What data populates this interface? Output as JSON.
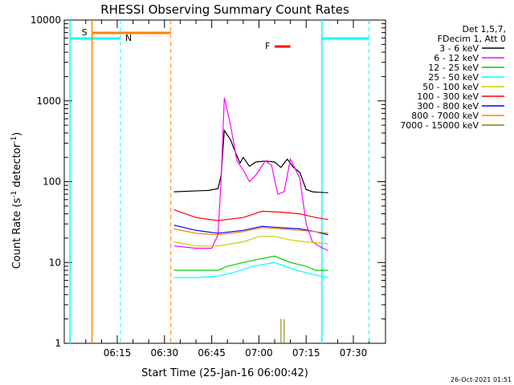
{
  "chart_data": {
    "type": "line",
    "title": "RHESSI Observing Summary Count Rates",
    "xlabel": "Start Time (25-Jan-16 06:00:42)",
    "ylabel": "Count Rate (s",
    "ylabel_sup": "-1",
    "ylabel_mid": " detector",
    "ylabel_sup2": "-1",
    "ylabel_end": ")",
    "yscale": "log",
    "ylim": [
      1,
      10000
    ],
    "y_ticks": [
      "1",
      "10",
      "100",
      "1000",
      "10000"
    ],
    "x_range_minutes": [
      0,
      48
    ],
    "x_ticks": [
      {
        "m": 15,
        "label": "06:15"
      },
      {
        "m": 30,
        "label": "06:30"
      },
      {
        "m": 45,
        "label": "06:45"
      },
      {
        "m": 60,
        "label": "07:00"
      },
      {
        "m": 75,
        "label": "07:15"
      },
      {
        "m": 90,
        "label": "07:30"
      }
    ],
    "legend_header": [
      "Det 1,5,7,",
      "FDecim 1, Att 0"
    ],
    "series": [
      {
        "name": "3 - 6 keV",
        "color": "#000000",
        "x": [
          "06:33",
          "06:44",
          "06:47",
          "06:48",
          "06:49",
          "06:51",
          "06:52",
          "06:54",
          "06:55",
          "06:57",
          "06:59",
          "07:02",
          "07:05",
          "07:07",
          "07:09",
          "07:11",
          "07:13",
          "07:15",
          "07:17",
          "07:19",
          "07:22"
        ],
        "y": [
          75,
          78,
          82,
          120,
          430,
          330,
          260,
          170,
          200,
          155,
          175,
          180,
          175,
          150,
          190,
          150,
          130,
          80,
          75,
          74,
          73
        ]
      },
      {
        "name": "6 - 12 keV",
        "color": "#ff00ff",
        "x": [
          "06:33",
          "06:40",
          "06:45",
          "06:47",
          "06:48",
          "06:49",
          "06:51",
          "06:53",
          "06:55",
          "06:57",
          "06:59",
          "07:02",
          "07:04",
          "07:06",
          "07:08",
          "07:10",
          "07:13",
          "07:15",
          "07:17",
          "07:19",
          "07:22"
        ],
        "y": [
          16,
          15,
          15,
          22,
          110,
          1100,
          500,
          180,
          140,
          100,
          120,
          180,
          160,
          70,
          75,
          190,
          110,
          30,
          18,
          16,
          14
        ]
      },
      {
        "name": "12 - 25 keV",
        "color": "#00cc00",
        "x": [
          "06:33",
          "06:40",
          "06:47",
          "06:50",
          "06:55",
          "07:00",
          "07:05",
          "07:10",
          "07:15",
          "07:18",
          "07:22"
        ],
        "y": [
          8,
          8,
          8,
          9,
          10,
          11,
          12,
          10,
          9,
          8,
          8
        ]
      },
      {
        "name": "25 - 50 keV",
        "color": "#00ffff",
        "x": [
          "06:33",
          "06:40",
          "06:47",
          "06:52",
          "06:58",
          "07:05",
          "07:12",
          "07:18",
          "07:22"
        ],
        "y": [
          6.5,
          6.5,
          6.8,
          7.5,
          9,
          10,
          8,
          7,
          6.5
        ]
      },
      {
        "name": "50 - 100 keV",
        "color": "#cccc00",
        "x": [
          "06:33",
          "06:40",
          "06:47",
          "06:55",
          "07:00",
          "07:05",
          "07:10",
          "07:15",
          "07:22"
        ],
        "y": [
          18,
          16,
          16,
          18,
          21,
          21,
          19,
          18,
          17
        ]
      },
      {
        "name": "100 - 300 keV",
        "color": "#ff0000",
        "x": [
          "06:33",
          "06:40",
          "06:47",
          "06:55",
          "07:01",
          "07:07",
          "07:13",
          "07:18",
          "07:22"
        ],
        "y": [
          45,
          36,
          33,
          36,
          43,
          42,
          40,
          36,
          34
        ]
      },
      {
        "name": "300 - 800 keV",
        "color": "#0000ff",
        "x": [
          "06:33",
          "06:40",
          "06:47",
          "06:55",
          "07:01",
          "07:07",
          "07:13",
          "07:18",
          "07:22"
        ],
        "y": [
          29,
          25,
          23,
          25,
          28,
          27,
          26,
          24,
          22
        ]
      },
      {
        "name": "800 - 7000 keV",
        "color": "#ff8000",
        "x": [
          "06:33",
          "06:40",
          "06:47",
          "06:55",
          "07:01",
          "07:07",
          "07:13",
          "07:18",
          "07:22"
        ],
        "y": [
          26,
          23,
          22,
          24,
          27,
          26,
          25,
          24,
          23
        ]
      },
      {
        "name": "7000 - 15000 keV",
        "color": "#808000",
        "x": [
          "06:55",
          "07:07",
          "07:08",
          "07:13"
        ],
        "y": [
          1,
          2,
          2,
          1
        ]
      }
    ],
    "annotations": {
      "S": {
        "label": "S",
        "color": "#ff8000",
        "x0": "06:07",
        "x1": "06:32"
      },
      "N": {
        "label": "N",
        "color": "#00ffff",
        "segments": [
          [
            "06:00",
            "06:16"
          ],
          [
            "07:20",
            "07:35"
          ]
        ],
        "dashed_lines": [
          "06:16",
          "07:35"
        ],
        "solid_lines": [
          "06:00",
          "07:20"
        ]
      },
      "F": {
        "label": "F",
        "color": "#ff0000",
        "x0": "07:05",
        "x1": "07:10"
      }
    },
    "grid": false
  },
  "footer": {
    "timestamp": "26-Oct-2021 01:51"
  }
}
